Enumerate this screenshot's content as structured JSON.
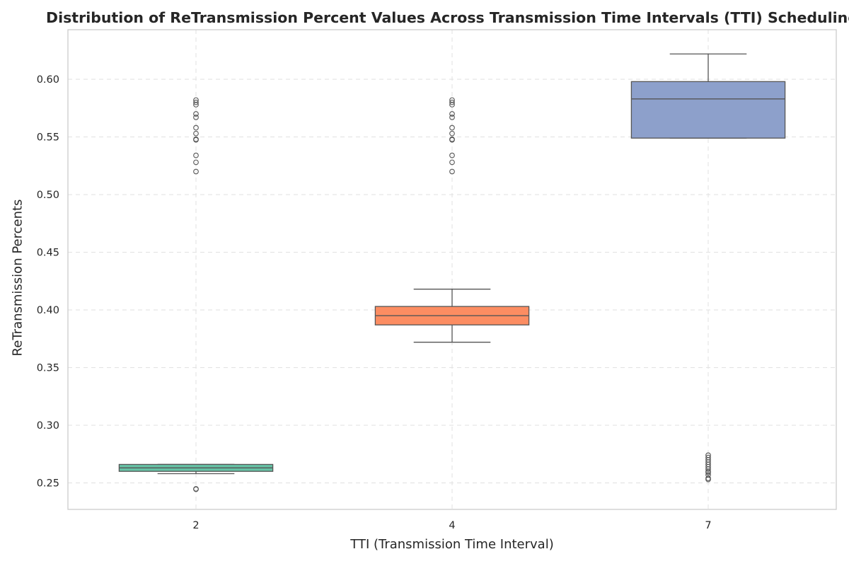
{
  "chart_data": {
    "type": "box",
    "title": "Distribution of ReTransmission Percent Values Across Transmission Time Intervals (TTI) Scheduling",
    "xlabel": "TTI (Transmission Time Interval)",
    "ylabel": "ReTransmission Percents",
    "categories": [
      "2",
      "4",
      "7"
    ],
    "ylim": [
      0.227,
      0.643
    ],
    "yticks": [
      "0.25",
      "0.30",
      "0.35",
      "0.40",
      "0.45",
      "0.50",
      "0.55",
      "0.60"
    ],
    "grid": true,
    "boxes": [
      {
        "category": "2",
        "color": "#66c2a5",
        "whisker_low": 0.258,
        "q1": 0.26,
        "median": 0.263,
        "q3": 0.266,
        "whisker_high": 0.266,
        "outliers": [
          0.2445,
          0.2448,
          0.52,
          0.528,
          0.534,
          0.5475,
          0.548,
          0.553,
          0.558,
          0.567,
          0.57,
          0.578,
          0.58,
          0.582
        ]
      },
      {
        "category": "4",
        "color": "#fc8d62",
        "whisker_low": 0.372,
        "q1": 0.387,
        "median": 0.395,
        "q3": 0.403,
        "whisker_high": 0.418,
        "outliers": [
          0.52,
          0.528,
          0.534,
          0.5475,
          0.548,
          0.553,
          0.558,
          0.567,
          0.57,
          0.578,
          0.58,
          0.582
        ]
      },
      {
        "category": "7",
        "color": "#8da0cb",
        "whisker_low": 0.549,
        "q1": 0.549,
        "median": 0.583,
        "q3": 0.598,
        "whisker_high": 0.622,
        "outliers": [
          0.253,
          0.254,
          0.257,
          0.259,
          0.26,
          0.262,
          0.264,
          0.266,
          0.268,
          0.27,
          0.272,
          0.274
        ]
      }
    ]
  }
}
